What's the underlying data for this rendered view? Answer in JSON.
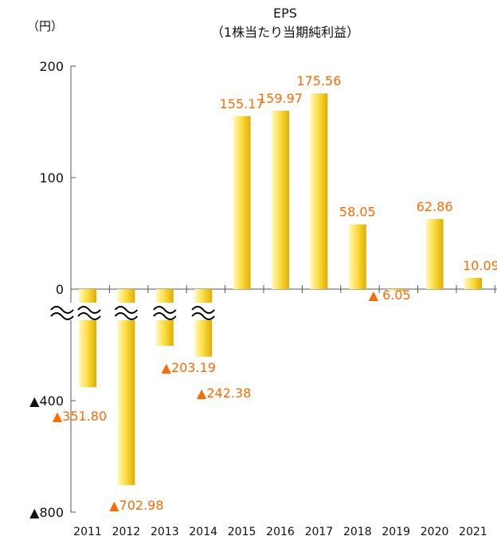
{
  "chart_data": {
    "type": "bar",
    "title": "EPS",
    "subtitle": "（1株当たり当期純利益）",
    "unit_label": "（円）",
    "categories": [
      "2011",
      "2012",
      "2013",
      "2014",
      "2015",
      "2016",
      "2017",
      "2018",
      "2019",
      "2020",
      "2021"
    ],
    "values": [
      -351.8,
      -702.98,
      -203.19,
      -242.38,
      155.17,
      159.97,
      175.56,
      58.05,
      -6.05,
      62.86,
      10.09
    ],
    "data_labels": [
      "▲351.80",
      "▲702.98",
      "▲203.19",
      "▲242.38",
      "155.17",
      "159.97",
      "175.56",
      "58.05",
      "▲ 6.05",
      "62.86",
      "10.09"
    ],
    "y_ticks": [
      {
        "value": 200,
        "label": "200"
      },
      {
        "value": 100,
        "label": "100"
      },
      {
        "value": 0,
        "label": "0"
      },
      {
        "value": -400,
        "label": "▲400"
      },
      {
        "value": -800,
        "label": "▲800"
      }
    ],
    "axis_break": {
      "symbol": "≈",
      "categories": [
        "2011",
        "2012",
        "2013",
        "2014"
      ]
    },
    "colors": {
      "bar_light": "#fff8b0",
      "bar_mid": "#fde047",
      "bar_dark": "#d9a800",
      "label": "#ff6a00",
      "axis": "#555555"
    },
    "grid": false
  }
}
